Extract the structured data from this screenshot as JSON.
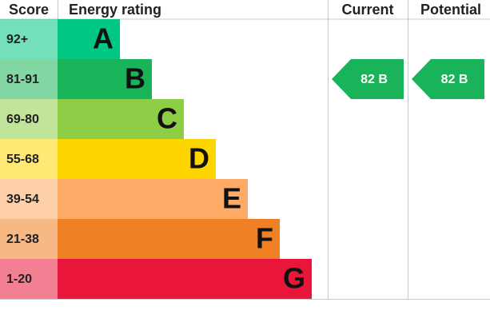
{
  "header": {
    "score": "Score",
    "rating": "Energy rating",
    "current": "Current",
    "potential": "Potential"
  },
  "bands": [
    {
      "score": "92+",
      "letter": "A",
      "color": "#00c781"
    },
    {
      "score": "81-91",
      "letter": "B",
      "color": "#19b459"
    },
    {
      "score": "69-80",
      "letter": "C",
      "color": "#8dce46"
    },
    {
      "score": "55-68",
      "letter": "D",
      "color": "#ffd500"
    },
    {
      "score": "39-54",
      "letter": "E",
      "color": "#fcaa65"
    },
    {
      "score": "21-38",
      "letter": "F",
      "color": "#ef8023"
    },
    {
      "score": "1-20",
      "letter": "G",
      "color": "#e9153b"
    }
  ],
  "current": {
    "label": "82 B",
    "color": "#19b459"
  },
  "potential": {
    "label": "82 B",
    "color": "#19b459"
  }
}
